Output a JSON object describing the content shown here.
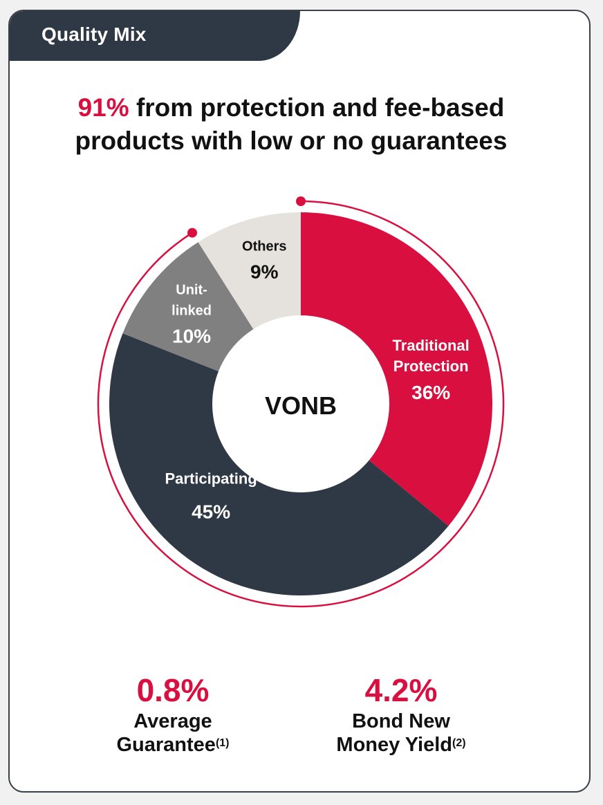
{
  "header": {
    "tab_title": "Quality Mix"
  },
  "headline": {
    "accent": "91%",
    "line1_rest": "from protection and fee-based",
    "line2": "products with low or no guarantees"
  },
  "chart_data": {
    "type": "pie",
    "center_label": "VONB",
    "slices": [
      {
        "label_lines": [
          "Traditional",
          "Protection"
        ],
        "value": 36,
        "value_label": "36%",
        "color": "#d80f3f",
        "text_color": "#ffffff"
      },
      {
        "label_lines": [
          "Participating"
        ],
        "value": 45,
        "value_label": "45%",
        "color": "#2f3845",
        "text_color": "#ffffff"
      },
      {
        "label_lines": [
          "Unit-",
          "linked"
        ],
        "value": 10,
        "value_label": "10%",
        "color": "#808080",
        "text_color": "#ffffff"
      },
      {
        "label_lines": [
          "Others"
        ],
        "value": 9,
        "value_label": "9%",
        "color": "#e5e1dc",
        "text_color": "#111111"
      }
    ],
    "highlight_arc": {
      "share": 91,
      "color": "#d80f3f"
    }
  },
  "stats": [
    {
      "value": "0.8%",
      "label_line1": "Average",
      "label_line2": "Guarantee",
      "footnote": "(1)"
    },
    {
      "value": "4.2%",
      "label_line1": "Bond New",
      "label_line2": "Money Yield",
      "footnote": "(2)"
    }
  ],
  "colors": {
    "accent": "#d80f3f",
    "dark": "#2f3845",
    "border": "#3a3f48"
  }
}
